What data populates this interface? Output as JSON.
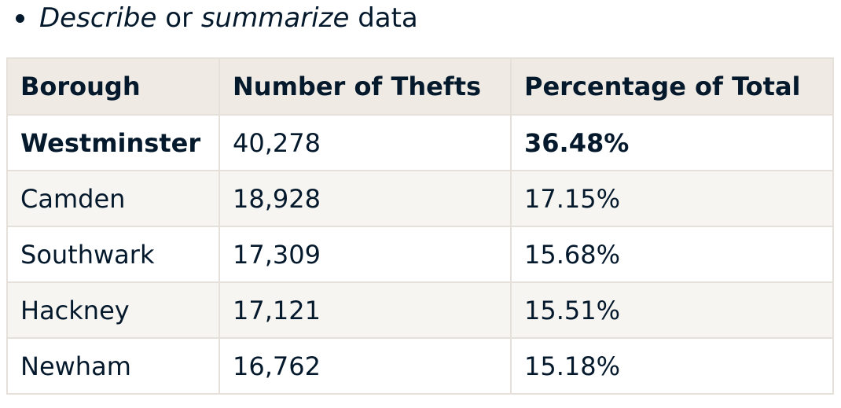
{
  "bullet": {
    "word1": "Describe",
    "connector": "or",
    "word2": "summarize",
    "tail": "data"
  },
  "table": {
    "headers": [
      "Borough",
      "Number of Thefts",
      "Percentage of Total"
    ],
    "rows": [
      [
        "Westminster",
        "40,278",
        "36.48%"
      ],
      [
        "Camden",
        "18,928",
        "17.15%"
      ],
      [
        "Southwark",
        "17,309",
        "15.68%"
      ],
      [
        "Hackney",
        "17,121",
        "15.51%"
      ],
      [
        "Newham",
        "16,762",
        "15.18%"
      ]
    ]
  }
}
